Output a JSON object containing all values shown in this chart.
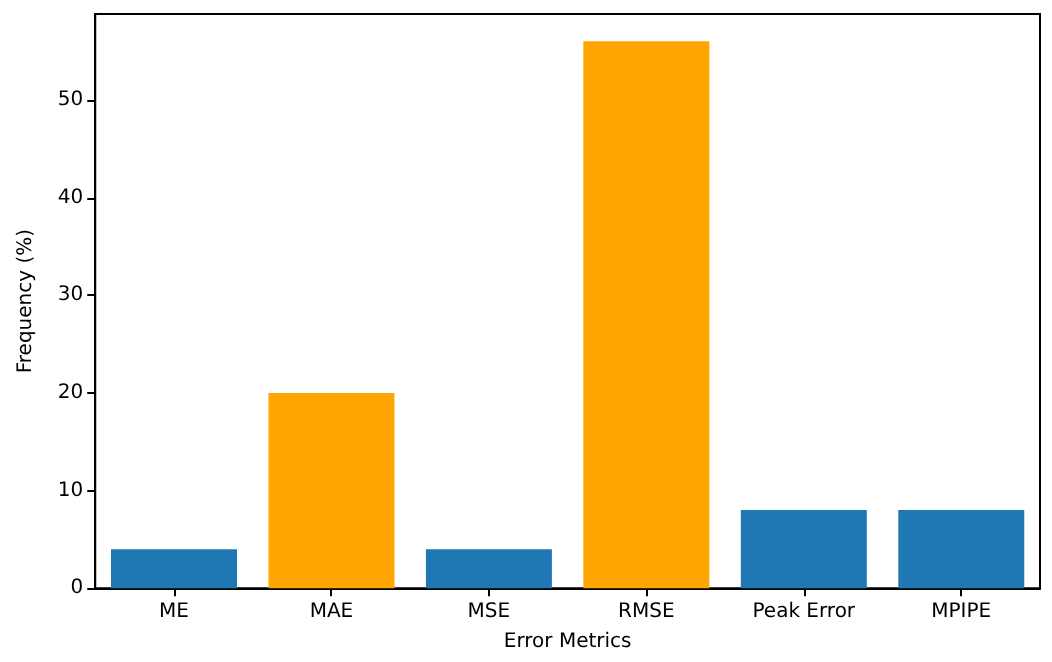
{
  "chart_data": {
    "type": "bar",
    "xlabel": "Error Metrics",
    "ylabel": "Frequency (%)",
    "categories": [
      "ME",
      "MAE",
      "MSE",
      "RMSE",
      "Peak Error",
      "MPIPE"
    ],
    "values": [
      4,
      20,
      4,
      56,
      8,
      8
    ],
    "colors": [
      "#1f77b4",
      "#ffa500",
      "#1f77b4",
      "#ffa500",
      "#1f77b4",
      "#1f77b4"
    ],
    "ylim": [
      0,
      58.8
    ],
    "yticks": [
      0,
      10,
      20,
      30,
      40,
      50
    ]
  }
}
